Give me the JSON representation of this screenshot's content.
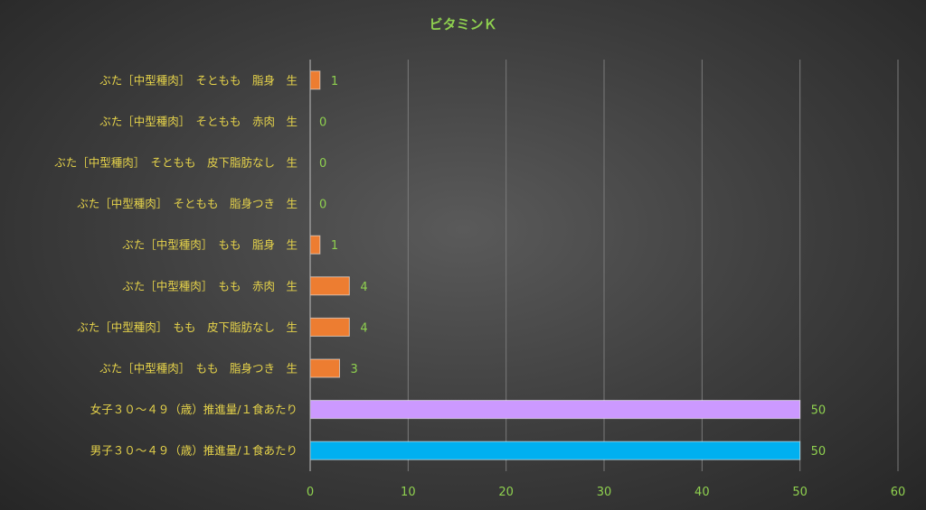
{
  "chart_data": {
    "type": "bar",
    "orientation": "horizontal",
    "title": "ビタミンＫ",
    "categories": [
      "ぶた［中型種肉］　そともも　脂身　生",
      "ぶた［中型種肉］　そともも　赤肉　生",
      "ぶた［中型種肉］　そともも　皮下脂肪なし　生",
      "ぶた［中型種肉］　そともも　脂身つき　生",
      "ぶた［中型種肉］　もも　脂身　生",
      "ぶた［中型種肉］　もも　赤肉　生",
      "ぶた［中型種肉］　もも　皮下脂肪なし　生",
      "ぶた［中型種肉］　もも　脂身つき　生",
      "女子３０～４９（歳）推進量/１食あたり",
      "男子３０～４９（歳）推進量/１食あたり"
    ],
    "values": [
      1,
      0,
      0,
      0,
      1,
      4,
      4,
      3,
      50,
      50
    ],
    "bar_colors": [
      "#ed7d31",
      "#ed7d31",
      "#ed7d31",
      "#ed7d31",
      "#ed7d31",
      "#ed7d31",
      "#ed7d31",
      "#ed7d31",
      "#cc99ff",
      "#00b0f0"
    ],
    "xlim": [
      0,
      60
    ],
    "xticks": [
      0,
      10,
      20,
      30,
      40,
      50,
      60
    ],
    "grid": true,
    "data_labels": true
  }
}
